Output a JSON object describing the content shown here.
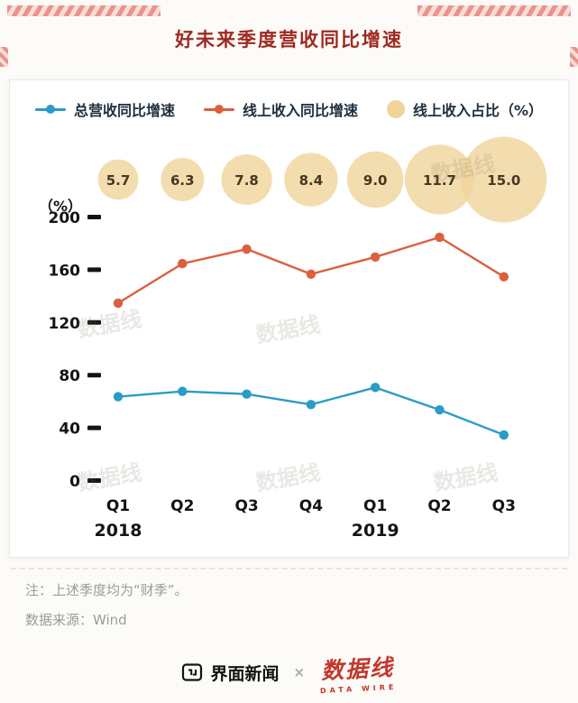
{
  "header": {
    "title": "好未来季度营收同比增速"
  },
  "legend": [
    {
      "label": "总营收同比增速"
    },
    {
      "label": "线上收入同比增速"
    },
    {
      "label": "线上收入占比（%）"
    }
  ],
  "chart_data": {
    "type": "line",
    "title": "好未来季度营收同比增速",
    "categories": [
      "Q1",
      "Q2",
      "Q3",
      "Q4",
      "Q1",
      "Q2",
      "Q3"
    ],
    "year_labels": [
      {
        "text": "2018",
        "index": 0
      },
      {
        "text": "2019",
        "index": 4
      }
    ],
    "ylabel": "（%）",
    "ylim": [
      0,
      200
    ],
    "yticks": [
      0,
      40,
      80,
      120,
      160,
      200
    ],
    "grid": false,
    "legend_position": "top",
    "series": [
      {
        "name": "总营收同比增速",
        "color": "#2b9bc7",
        "values": [
          64,
          68,
          66,
          58,
          71,
          54,
          35
        ]
      },
      {
        "name": "线上收入同比增速",
        "color": "#dc5f3e",
        "values": [
          135,
          165,
          176,
          157,
          170,
          185,
          155
        ]
      }
    ],
    "bubbles": {
      "name": "线上收入占比（%）",
      "color": "#f0d49a",
      "values": [
        5.7,
        6.3,
        7.8,
        8.4,
        9.0,
        11.7,
        15.0
      ]
    }
  },
  "notes": [
    "注：上述季度均为“财季”。",
    "数据来源：Wind"
  ],
  "footer": {
    "left_logo": "界面新闻",
    "separator": "×",
    "right_logo": "数据线",
    "right_logo_sub": "DATA WIRE"
  },
  "watermark": "数据线",
  "colors": {
    "title_red": "#9e2a22",
    "tape_pink": "#e9938a",
    "axis_black": "#141414",
    "note_gray": "#9b9b9b",
    "logo_red": "#c3372c"
  }
}
